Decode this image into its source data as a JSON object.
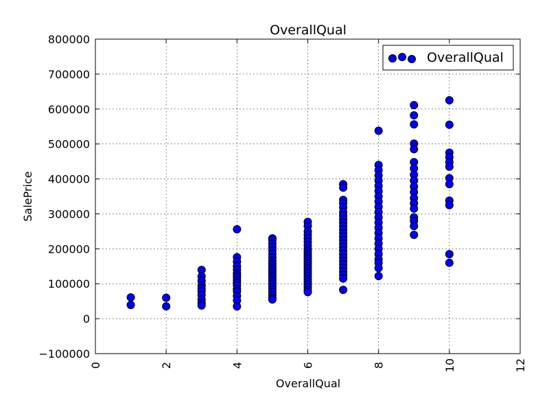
{
  "chart_data": {
    "type": "scatter",
    "title": "OverallQual",
    "xlabel": "OverallQual",
    "ylabel": "SalePrice",
    "xlim": [
      0,
      12
    ],
    "ylim": [
      -100000,
      800000
    ],
    "xticks": [
      0,
      2,
      4,
      6,
      8,
      10,
      12
    ],
    "xtick_labels": [
      "0",
      "2",
      "4",
      "6",
      "8",
      "10",
      "12"
    ],
    "yticks": [
      -100000,
      0,
      100000,
      200000,
      300000,
      400000,
      500000,
      600000,
      700000,
      800000
    ],
    "ytick_labels": [
      "−100000",
      "0",
      "100000",
      "200000",
      "300000",
      "400000",
      "500000",
      "600000",
      "700000",
      "800000"
    ],
    "grid": true,
    "legend_position": "top-right",
    "series": [
      {
        "name": "OverallQual",
        "color": "#0000ff",
        "edge_color": "#000000",
        "points": [
          [
            1,
            61000
          ],
          [
            1,
            39300
          ],
          [
            2,
            60000
          ],
          [
            2,
            35311
          ],
          [
            3,
            139600
          ],
          [
            3,
            121000
          ],
          [
            3,
            108000
          ],
          [
            3,
            95000
          ],
          [
            3,
            87000
          ],
          [
            3,
            79000
          ],
          [
            3,
            68000
          ],
          [
            3,
            55000
          ],
          [
            3,
            45000
          ],
          [
            3,
            37900
          ],
          [
            4,
            256000
          ],
          [
            4,
            176000
          ],
          [
            4,
            163000
          ],
          [
            4,
            150000
          ],
          [
            4,
            140000
          ],
          [
            4,
            130000
          ],
          [
            4,
            124000
          ],
          [
            4,
            118000
          ],
          [
            4,
            110000
          ],
          [
            4,
            103000
          ],
          [
            4,
            95000
          ],
          [
            4,
            85000
          ],
          [
            4,
            78000
          ],
          [
            4,
            65000
          ],
          [
            4,
            52000
          ],
          [
            4,
            35000
          ],
          [
            5,
            230000
          ],
          [
            5,
            225000
          ],
          [
            5,
            215000
          ],
          [
            5,
            205000
          ],
          [
            5,
            195000
          ],
          [
            5,
            185000
          ],
          [
            5,
            175000
          ],
          [
            5,
            165000
          ],
          [
            5,
            158000
          ],
          [
            5,
            150000
          ],
          [
            5,
            143000
          ],
          [
            5,
            136000
          ],
          [
            5,
            129000
          ],
          [
            5,
            122000
          ],
          [
            5,
            115000
          ],
          [
            5,
            108000
          ],
          [
            5,
            100000
          ],
          [
            5,
            92000
          ],
          [
            5,
            84000
          ],
          [
            5,
            76000
          ],
          [
            5,
            68000
          ],
          [
            5,
            60000
          ],
          [
            5,
            55000
          ],
          [
            6,
            277000
          ],
          [
            6,
            265000
          ],
          [
            6,
            250000
          ],
          [
            6,
            240000
          ],
          [
            6,
            230000
          ],
          [
            6,
            220000
          ],
          [
            6,
            210000
          ],
          [
            6,
            200000
          ],
          [
            6,
            193000
          ],
          [
            6,
            186000
          ],
          [
            6,
            179000
          ],
          [
            6,
            172000
          ],
          [
            6,
            165000
          ],
          [
            6,
            158000
          ],
          [
            6,
            151000
          ],
          [
            6,
            144000
          ],
          [
            6,
            137000
          ],
          [
            6,
            130000
          ],
          [
            6,
            122000
          ],
          [
            6,
            114000
          ],
          [
            6,
            106000
          ],
          [
            6,
            98000
          ],
          [
            6,
            90000
          ],
          [
            6,
            82000
          ],
          [
            6,
            76000
          ],
          [
            7,
            385000
          ],
          [
            7,
            375000
          ],
          [
            7,
            340000
          ],
          [
            7,
            330000
          ],
          [
            7,
            318000
          ],
          [
            7,
            305000
          ],
          [
            7,
            295000
          ],
          [
            7,
            285000
          ],
          [
            7,
            275000
          ],
          [
            7,
            265000
          ],
          [
            7,
            255000
          ],
          [
            7,
            245000
          ],
          [
            7,
            235000
          ],
          [
            7,
            225000
          ],
          [
            7,
            215000
          ],
          [
            7,
            205000
          ],
          [
            7,
            195000
          ],
          [
            7,
            185000
          ],
          [
            7,
            175000
          ],
          [
            7,
            165000
          ],
          [
            7,
            155000
          ],
          [
            7,
            145000
          ],
          [
            7,
            135000
          ],
          [
            7,
            125000
          ],
          [
            7,
            115000
          ],
          [
            7,
            82500
          ],
          [
            8,
            538000
          ],
          [
            8,
            440000
          ],
          [
            8,
            425000
          ],
          [
            8,
            410000
          ],
          [
            8,
            395000
          ],
          [
            8,
            380000
          ],
          [
            8,
            365000
          ],
          [
            8,
            350000
          ],
          [
            8,
            335000
          ],
          [
            8,
            320000
          ],
          [
            8,
            305000
          ],
          [
            8,
            290000
          ],
          [
            8,
            275000
          ],
          [
            8,
            260000
          ],
          [
            8,
            245000
          ],
          [
            8,
            230000
          ],
          [
            8,
            215000
          ],
          [
            8,
            200000
          ],
          [
            8,
            185000
          ],
          [
            8,
            170000
          ],
          [
            8,
            160000
          ],
          [
            8,
            145000
          ],
          [
            8,
            122000
          ],
          [
            9,
            611000
          ],
          [
            9,
            582000
          ],
          [
            9,
            556000
          ],
          [
            9,
            501000
          ],
          [
            9,
            485000
          ],
          [
            9,
            448000
          ],
          [
            9,
            430000
          ],
          [
            9,
            412000
          ],
          [
            9,
            395000
          ],
          [
            9,
            378000
          ],
          [
            9,
            362000
          ],
          [
            9,
            345000
          ],
          [
            9,
            330000
          ],
          [
            9,
            315000
          ],
          [
            9,
            290000
          ],
          [
            9,
            280000
          ],
          [
            9,
            265000
          ],
          [
            9,
            240000
          ],
          [
            10,
            625000
          ],
          [
            10,
            555000
          ],
          [
            10,
            475000
          ],
          [
            10,
            462000
          ],
          [
            10,
            448000
          ],
          [
            10,
            435000
          ],
          [
            10,
            402000
          ],
          [
            10,
            385000
          ],
          [
            10,
            338000
          ],
          [
            10,
            325000
          ],
          [
            10,
            184750
          ],
          [
            10,
            160000
          ]
        ]
      }
    ]
  }
}
